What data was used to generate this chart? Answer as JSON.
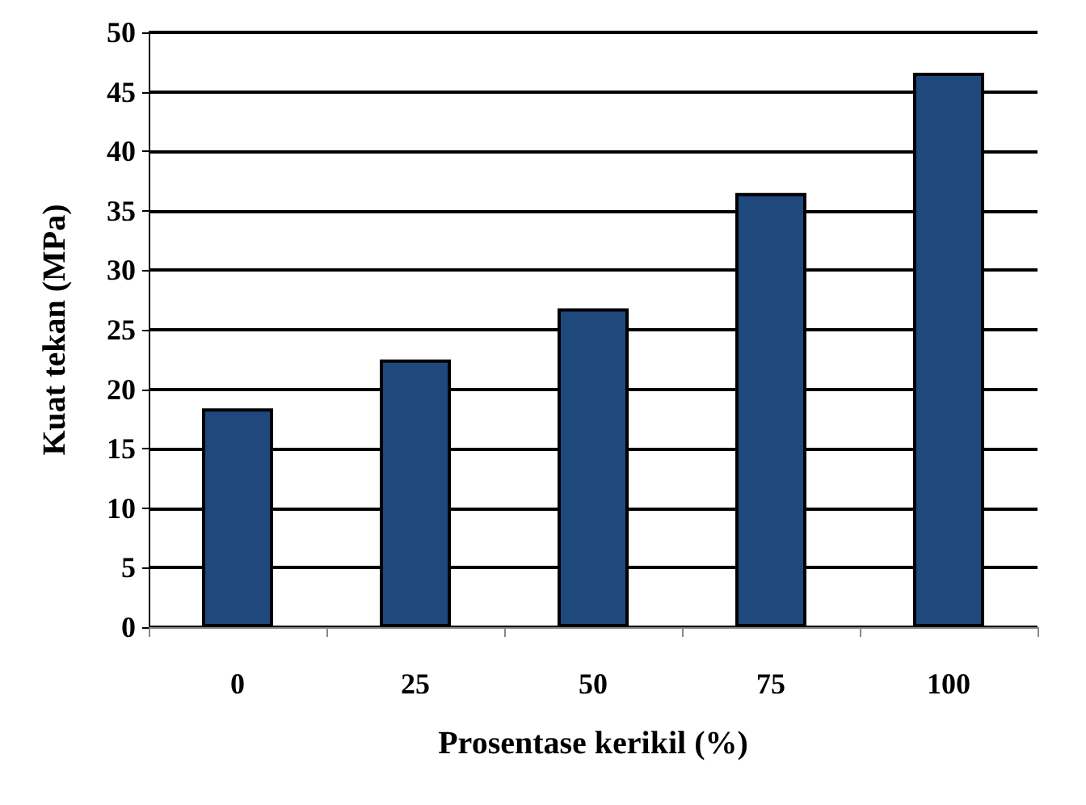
{
  "chart_data": {
    "type": "bar",
    "xlabel": "Prosentase kerikil (%)",
    "ylabel": "Kuat tekan (MPa)",
    "categories": [
      "0",
      "25",
      "50",
      "75",
      "100"
    ],
    "values": [
      18.4,
      22.5,
      26.8,
      36.5,
      46.6
    ],
    "color": "#1f497d",
    "ylim": [
      0,
      50
    ],
    "yticks": [
      0,
      5,
      10,
      15,
      20,
      25,
      30,
      35,
      40,
      45,
      50
    ],
    "grid": "y"
  }
}
